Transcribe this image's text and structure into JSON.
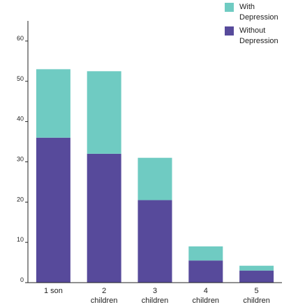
{
  "chart_data": {
    "type": "bar",
    "stacked": true,
    "categories": [
      "1 son",
      "2 children",
      "3 children",
      "4 children",
      "5 children"
    ],
    "series": [
      {
        "name": "Without Depression",
        "color": "#574a9b",
        "values": [
          36,
          32,
          20.5,
          5.5,
          3
        ]
      },
      {
        "name": "With Depression",
        "color": "#6fcbc2",
        "values": [
          17,
          20.5,
          10.5,
          3.5,
          1.2
        ]
      }
    ],
    "ylim": [
      0,
      65
    ],
    "yticks": [
      0,
      10,
      20,
      30,
      40,
      50,
      60
    ],
    "title": "",
    "xlabel": "",
    "ylabel": "",
    "grid": false,
    "legend_position": "top-right"
  },
  "legend": [
    {
      "label": "With Depression",
      "color": "#6fcbc2"
    },
    {
      "label": "Without Depression",
      "color": "#574a9b"
    }
  ]
}
